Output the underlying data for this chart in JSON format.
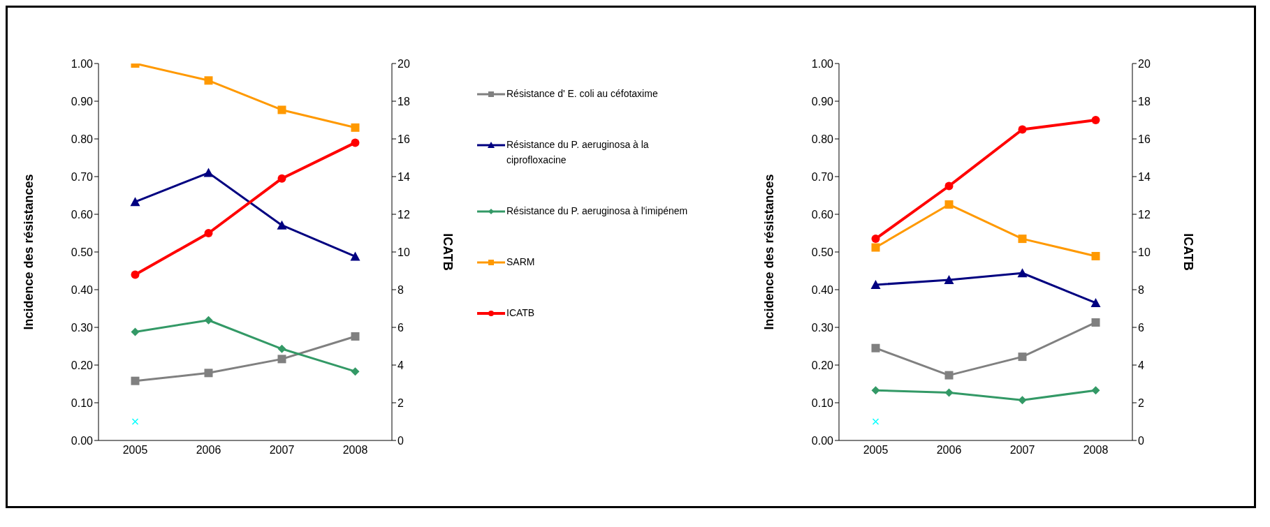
{
  "chart_data": [
    {
      "type": "line",
      "categories": [
        "2005",
        "2006",
        "2007",
        "2008"
      ],
      "ylabel": "Incidence des résistances",
      "y2label": "ICATB",
      "ylim": [
        0,
        1
      ],
      "yticks": [
        {
          "value": 0,
          "label": "0.00"
        },
        {
          "value": 0.1,
          "label": "0.10"
        },
        {
          "value": 0.2,
          "label": "0.20"
        },
        {
          "value": 0.3,
          "label": "0.30"
        },
        {
          "value": 0.4,
          "label": "0.40"
        },
        {
          "value": 0.5,
          "label": "0.50"
        },
        {
          "value": 0.6,
          "label": "0.60"
        },
        {
          "value": 0.7,
          "label": "0.70"
        },
        {
          "value": 0.8,
          "label": "0.80"
        },
        {
          "value": 0.9,
          "label": "0.90"
        },
        {
          "value": 1,
          "label": "1.00"
        }
      ],
      "y2lim": [
        0,
        20
      ],
      "y2ticks": [
        0,
        2,
        4,
        6,
        8,
        10,
        12,
        14,
        16,
        18,
        20
      ],
      "grid": false,
      "legend": "right",
      "series": [
        {
          "name": "Résistance d' E. coli au céfotaxime",
          "color": "#808080",
          "marker": "square",
          "values": [
            0.158,
            0.179,
            0.216,
            0.276
          ]
        },
        {
          "name": "Résistance du P. aeruginosa à la ciprofloxacine",
          "color": "#000080",
          "marker": "triangle",
          "values": [
            0.633,
            0.71,
            0.571,
            0.488
          ]
        },
        {
          "name": "Résistance du P. aeruginosa à l'imipénem",
          "color": "#339966",
          "marker": "diamond",
          "values": [
            0.288,
            0.319,
            0.243,
            0.183
          ]
        },
        {
          "name": "SARM",
          "color": "#ff9900",
          "marker": "square",
          "values": [
            1.0,
            0.955,
            0.877,
            0.83
          ]
        },
        {
          "name": "ICATB",
          "color": "#ff0000",
          "marker": "circle",
          "axis": "y2",
          "values": [
            8.8,
            11.0,
            13.9,
            15.8
          ]
        },
        {
          "type": "scatter",
          "color": "#00ffff",
          "marker": "cross",
          "values": [
            0.05,
            null,
            null,
            null
          ]
        }
      ]
    },
    {
      "type": "line",
      "categories": [
        "2005",
        "2006",
        "2007",
        "2008"
      ],
      "ylabel": "Incidence des résistances",
      "y2label": "ICATB",
      "ylim": [
        0,
        1
      ],
      "yticks": [
        {
          "value": 0,
          "label": "0.00"
        },
        {
          "value": 0.1,
          "label": "0.10"
        },
        {
          "value": 0.2,
          "label": "0.20"
        },
        {
          "value": 0.3,
          "label": "0.30"
        },
        {
          "value": 0.4,
          "label": "0.40"
        },
        {
          "value": 0.5,
          "label": "0.50"
        },
        {
          "value": 0.6,
          "label": "0.60"
        },
        {
          "value": 0.7,
          "label": "0.70"
        },
        {
          "value": 0.8,
          "label": "0.80"
        },
        {
          "value": 0.9,
          "label": "0.90"
        },
        {
          "value": 1,
          "label": "1.00"
        }
      ],
      "y2lim": [
        0,
        20
      ],
      "y2ticks": [
        0,
        2,
        4,
        6,
        8,
        10,
        12,
        14,
        16,
        18,
        20
      ],
      "grid": false,
      "series": [
        {
          "color": "#808080",
          "marker": "square",
          "values": [
            0.245,
            0.173,
            0.222,
            0.313
          ]
        },
        {
          "color": "#000080",
          "marker": "triangle",
          "values": [
            0.413,
            0.426,
            0.444,
            0.365
          ]
        },
        {
          "color": "#339966",
          "marker": "diamond",
          "values": [
            0.133,
            0.127,
            0.107,
            0.133
          ]
        },
        {
          "color": "#ff9900",
          "marker": "square",
          "values": [
            0.512,
            0.626,
            0.535,
            0.489
          ]
        },
        {
          "color": "#ff0000",
          "marker": "circle",
          "axis": "y2",
          "values": [
            10.7,
            13.5,
            16.5,
            17.0
          ]
        },
        {
          "type": "scatter",
          "color": "#00ffff",
          "marker": "cross",
          "values": [
            0.05,
            null,
            null,
            null
          ]
        }
      ]
    }
  ]
}
